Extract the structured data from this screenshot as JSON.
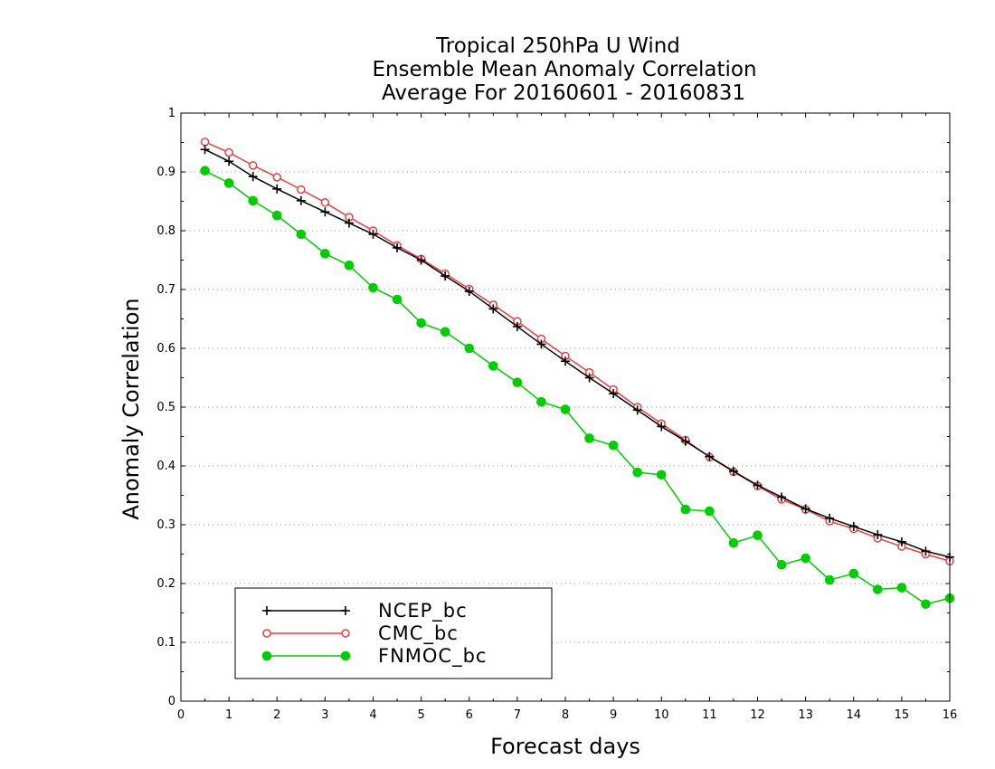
{
  "chart_data": {
    "type": "line",
    "title_lines": [
      "Tropical 250hPa U Wind",
      "Ensemble Mean Anomaly Correlation",
      "Average For 20160601 - 20160831"
    ],
    "xlabel": "Forecast days",
    "ylabel": "Anomaly Correlation",
    "xlim": [
      0,
      16
    ],
    "ylim": [
      0,
      1
    ],
    "xticks": [
      "0",
      "1",
      "2",
      "3",
      "4",
      "5",
      "6",
      "7",
      "8",
      "9",
      "10",
      "11",
      "12",
      "13",
      "14",
      "15",
      "16"
    ],
    "yticks": [
      "0",
      "0.1",
      "0.2",
      "0.3",
      "0.4",
      "0.5",
      "0.6",
      "0.7",
      "0.8",
      "0.9",
      "1"
    ],
    "grid": "horizontal dotted",
    "legend_position": "bottom-left",
    "x": [
      0.5,
      1,
      1.5,
      2,
      2.5,
      3,
      3.5,
      4,
      4.5,
      5,
      5.5,
      6,
      6.5,
      7,
      7.5,
      8,
      8.5,
      9,
      9.5,
      10,
      10.5,
      11,
      11.5,
      12,
      12.5,
      13,
      13.5,
      14,
      14.5,
      15,
      15.5,
      16
    ],
    "series": [
      {
        "name": "NCEP_bc",
        "color": "#000000",
        "marker": "plus",
        "values": [
          0.938,
          0.918,
          0.892,
          0.871,
          0.851,
          0.832,
          0.813,
          0.794,
          0.771,
          0.75,
          0.723,
          0.697,
          0.667,
          0.637,
          0.607,
          0.578,
          0.55,
          0.523,
          0.495,
          0.467,
          0.442,
          0.416,
          0.391,
          0.367,
          0.347,
          0.327,
          0.311,
          0.297,
          0.283,
          0.271,
          0.255,
          0.245
        ]
      },
      {
        "name": "CMC_bc",
        "color": "#e64040",
        "marker": "open-circle",
        "values": [
          0.951,
          0.933,
          0.911,
          0.891,
          0.87,
          0.848,
          0.823,
          0.8,
          0.775,
          0.752,
          0.727,
          0.701,
          0.674,
          0.646,
          0.616,
          0.587,
          0.559,
          0.53,
          0.5,
          0.472,
          0.444,
          0.415,
          0.39,
          0.366,
          0.343,
          0.326,
          0.306,
          0.293,
          0.277,
          0.263,
          0.25,
          0.238
        ]
      },
      {
        "name": "FNMOC_bc",
        "color": "#00cc00",
        "marker": "filled-circle",
        "values": [
          0.902,
          0.881,
          0.851,
          0.826,
          0.794,
          0.761,
          0.741,
          0.703,
          0.683,
          0.643,
          0.628,
          0.6,
          0.57,
          0.542,
          0.509,
          0.496,
          0.447,
          0.435,
          0.389,
          0.385,
          0.326,
          0.323,
          0.269,
          0.282,
          0.232,
          0.243,
          0.206,
          0.217,
          0.19,
          0.193,
          0.165,
          0.175
        ]
      }
    ]
  }
}
